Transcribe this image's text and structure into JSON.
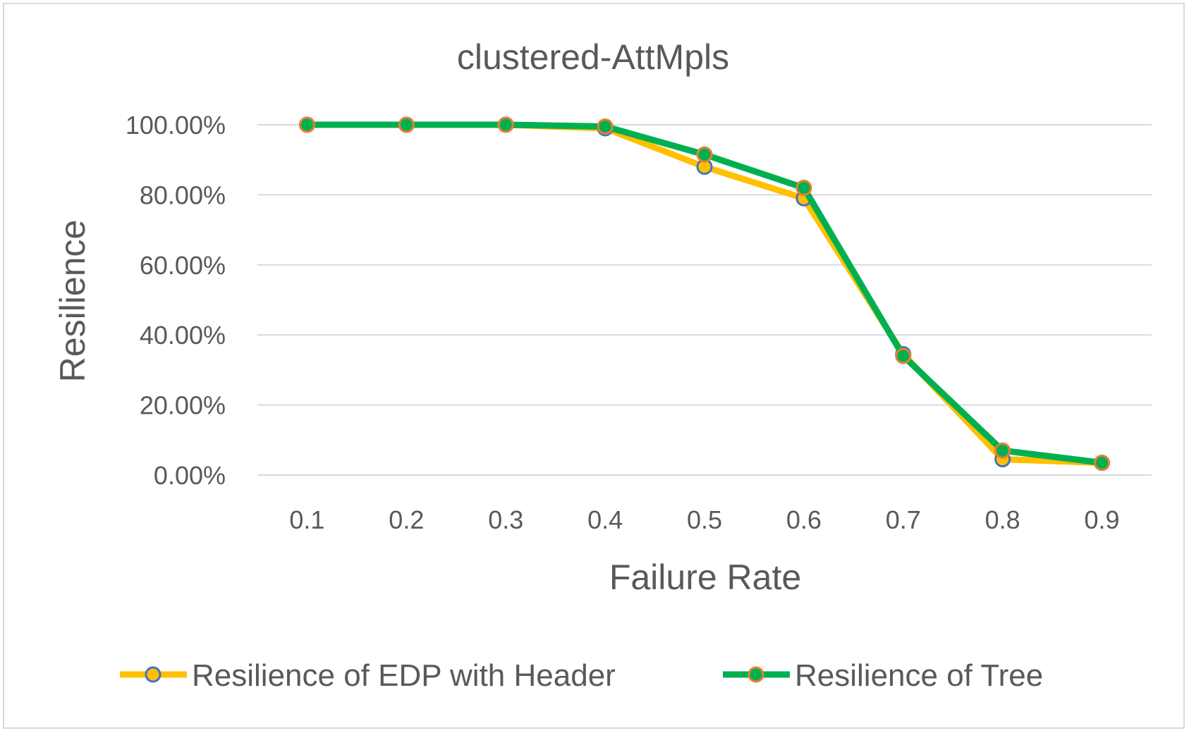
{
  "chart_data": {
    "type": "line",
    "title": "clustered-AttMpls",
    "xlabel": "Failure Rate",
    "ylabel": "Resilience",
    "categories": [
      "0.1",
      "0.2",
      "0.3",
      "0.4",
      "0.5",
      "0.6",
      "0.7",
      "0.8",
      "0.9"
    ],
    "ylim": [
      0,
      1
    ],
    "y_ticks": [
      "0.00%",
      "20.00%",
      "40.00%",
      "60.00%",
      "80.00%",
      "100.00%"
    ],
    "grid": true,
    "legend_position": "bottom",
    "series": [
      {
        "name": "Resilience of EDP with Header",
        "values": [
          1.0,
          1.0,
          1.0,
          0.99,
          0.88,
          0.79,
          0.345,
          0.045,
          0.035
        ],
        "line_color": "#ffc000",
        "marker_fill": "#ffc000",
        "marker_edge": "#4472c4"
      },
      {
        "name": "Resilience of Tree",
        "values": [
          1.0,
          1.0,
          1.0,
          0.995,
          0.915,
          0.82,
          0.34,
          0.07,
          0.035
        ],
        "line_color": "#00b050",
        "marker_fill": "#00b050",
        "marker_edge": "#ed7d31"
      }
    ]
  }
}
